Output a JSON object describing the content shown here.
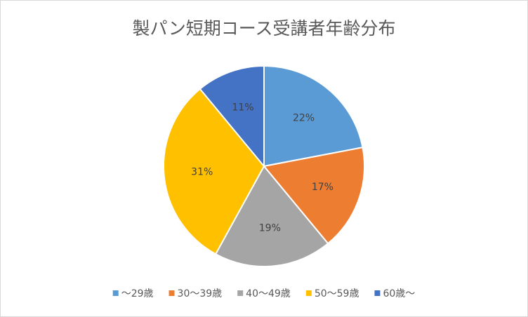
{
  "chart_data": {
    "type": "pie",
    "title": "製パン短期コース受講者年齢分布",
    "categories": [
      "～29歳",
      "30～39歳",
      "40～49歳",
      "50～59歳",
      "60歳～"
    ],
    "values": [
      22,
      17,
      19,
      31,
      11
    ],
    "value_labels": [
      "22%",
      "17%",
      "19%",
      "31%",
      "11%"
    ],
    "colors": [
      "#5b9bd5",
      "#ed7d31",
      "#a5a5a5",
      "#ffc000",
      "#4472c4"
    ],
    "legend": "bottom"
  }
}
